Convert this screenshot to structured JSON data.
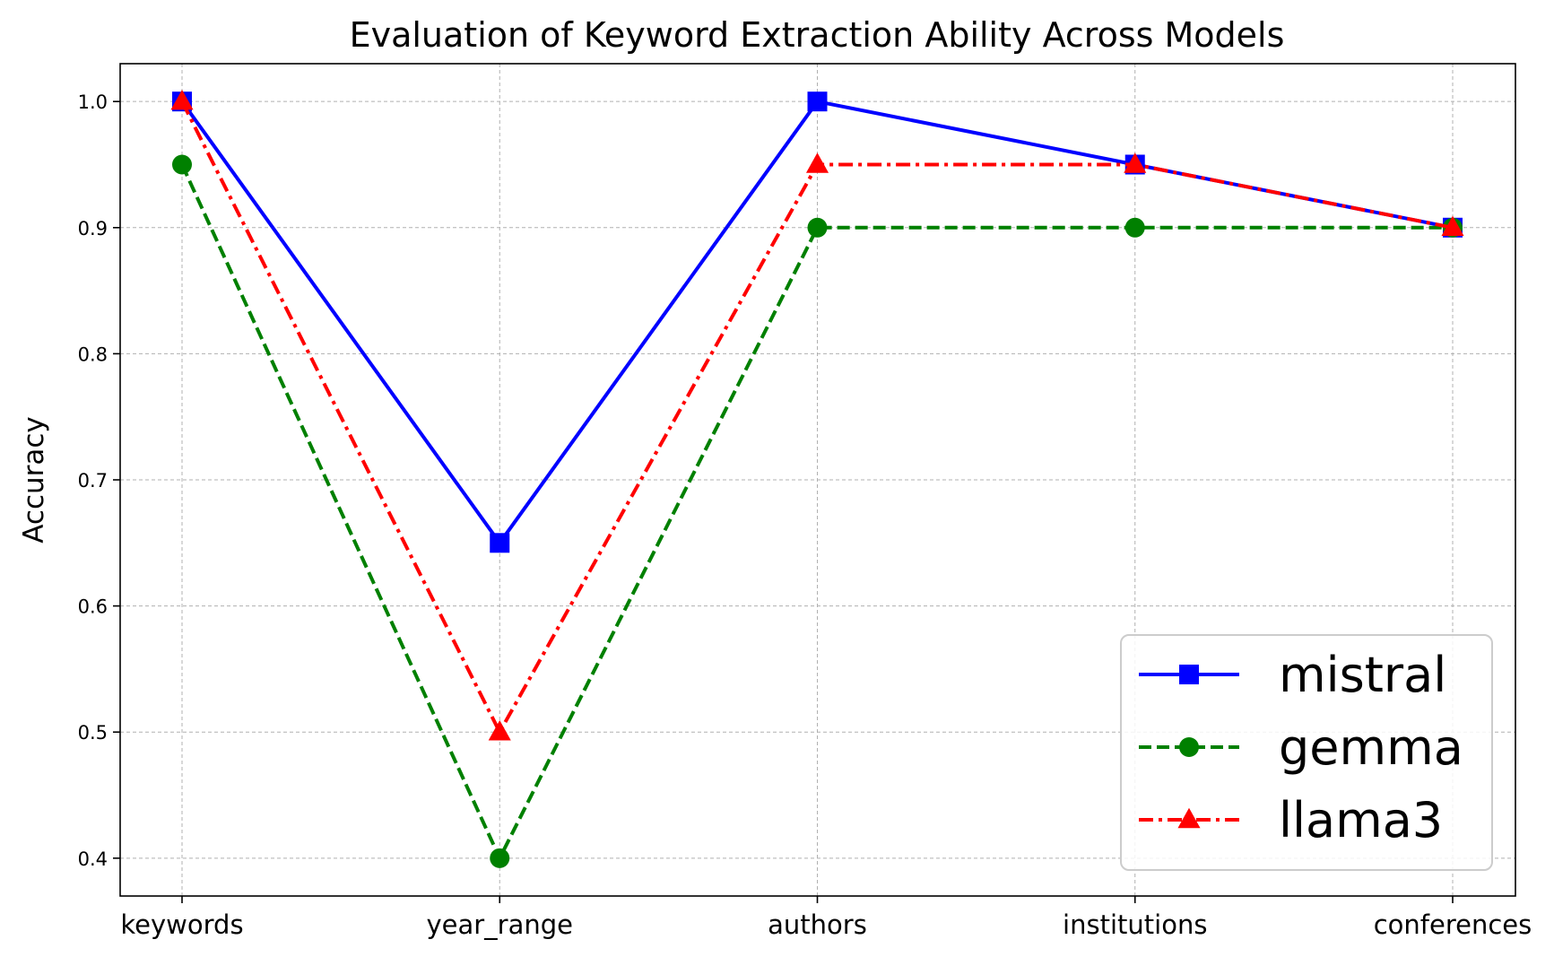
{
  "chart_data": {
    "type": "line",
    "title": "Evaluation of Keyword Extraction Ability Across Models",
    "xlabel": "",
    "ylabel": "Accuracy",
    "categories": [
      "keywords",
      "year_range",
      "authors",
      "institutions",
      "conferences"
    ],
    "ylim": [
      0.37,
      1.03
    ],
    "yticks": [
      0.4,
      0.5,
      0.6,
      0.7,
      0.8,
      0.9,
      1.0
    ],
    "ytick_labels": [
      "0.4",
      "0.5",
      "0.6",
      "0.7",
      "0.8",
      "0.9",
      "1.0"
    ],
    "grid": true,
    "legend_position": "lower-right",
    "series": [
      {
        "name": "mistral",
        "values": [
          1.0,
          0.65,
          1.0,
          0.95,
          0.9
        ],
        "color": "#0000ff",
        "line_style": "solid",
        "marker": "square"
      },
      {
        "name": "gemma",
        "values": [
          0.95,
          0.4,
          0.9,
          0.9,
          0.9
        ],
        "color": "#008000",
        "line_style": "dashed",
        "marker": "circle"
      },
      {
        "name": "llama3",
        "values": [
          1.0,
          0.5,
          0.95,
          0.95,
          0.9
        ],
        "color": "#ff0000",
        "line_style": "dashdot",
        "marker": "triangle"
      }
    ]
  }
}
